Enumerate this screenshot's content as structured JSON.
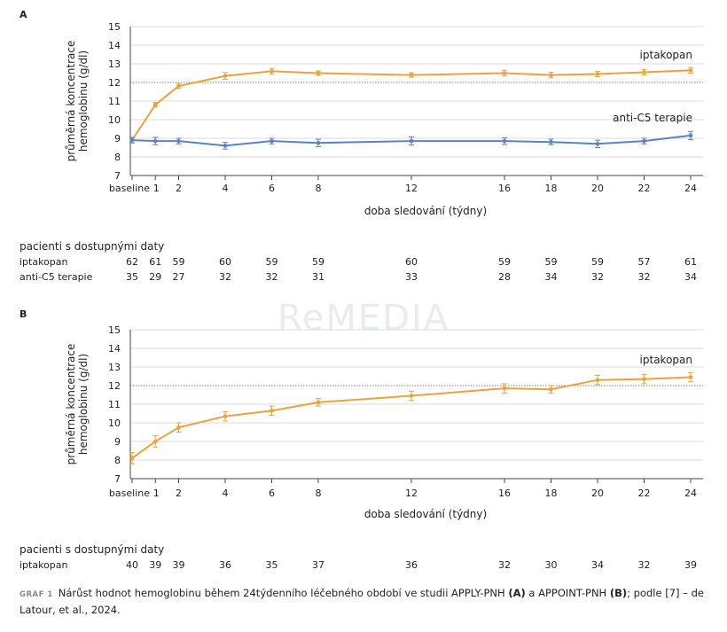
{
  "watermark": "ReMEDIA",
  "chart_data": [
    {
      "panel": "A",
      "type": "line",
      "ylabel_lines": [
        "průměrná koncentrace",
        "hemoglobinu (g/dl)"
      ],
      "xlabel": "doba sledování (týdny)",
      "x": [
        0,
        1,
        2,
        4,
        6,
        8,
        12,
        16,
        18,
        20,
        22,
        24
      ],
      "xtick_labels": [
        "baseline",
        "1",
        "2",
        "4",
        "6",
        "8",
        "12",
        "16",
        "18",
        "20",
        "22",
        "24"
      ],
      "ylim": [
        7,
        15
      ],
      "yticks": [
        7,
        8,
        9,
        10,
        11,
        12,
        13,
        14,
        15
      ],
      "reference_line": 12,
      "series": [
        {
          "name": "iptakopan",
          "color": "#e8a43c",
          "values": [
            8.9,
            10.8,
            11.8,
            12.35,
            12.6,
            12.5,
            12.4,
            12.5,
            12.4,
            12.45,
            12.55,
            12.65
          ],
          "err": [
            0.15,
            0.12,
            0.12,
            0.18,
            0.15,
            0.12,
            0.12,
            0.15,
            0.15,
            0.15,
            0.15,
            0.15
          ]
        },
        {
          "name": "anti-C5 terapie",
          "color": "#5b82c4",
          "values": [
            8.9,
            8.85,
            8.85,
            8.6,
            8.85,
            8.75,
            8.85,
            8.85,
            8.8,
            8.7,
            8.85,
            9.15
          ],
          "err": [
            0.15,
            0.2,
            0.15,
            0.18,
            0.15,
            0.2,
            0.22,
            0.18,
            0.15,
            0.2,
            0.15,
            0.22
          ]
        }
      ],
      "table": {
        "title": "pacienti s dostupnými daty",
        "rows": [
          {
            "label": "iptakopan",
            "values": [
              "62",
              "61",
              "59",
              "60",
              "59",
              "59",
              "60",
              "59",
              "59",
              "59",
              "57",
              "61"
            ]
          },
          {
            "label": "anti-C5 terapie",
            "values": [
              "35",
              "29",
              "27",
              "32",
              "32",
              "31",
              "33",
              "28",
              "34",
              "32",
              "32",
              "34"
            ]
          }
        ]
      }
    },
    {
      "panel": "B",
      "type": "line",
      "ylabel_lines": [
        "průměrná koncentrace",
        "hemoglobinu (g/dl)"
      ],
      "xlabel": "doba sledování (týdny)",
      "x": [
        0,
        1,
        2,
        4,
        6,
        8,
        12,
        16,
        18,
        20,
        22,
        24
      ],
      "xtick_labels": [
        "baseline",
        "1",
        "2",
        "4",
        "6",
        "8",
        "12",
        "16",
        "18",
        "20",
        "22",
        "24"
      ],
      "ylim": [
        7,
        15
      ],
      "yticks": [
        7,
        8,
        9,
        10,
        11,
        12,
        13,
        14,
        15
      ],
      "reference_line": 12,
      "series": [
        {
          "name": "iptakopan",
          "color": "#e8a43c",
          "values": [
            8.1,
            9.0,
            9.75,
            10.35,
            10.65,
            11.1,
            11.45,
            11.85,
            11.8,
            12.3,
            12.35,
            12.45
          ],
          "err": [
            0.3,
            0.3,
            0.25,
            0.25,
            0.25,
            0.2,
            0.25,
            0.25,
            0.2,
            0.25,
            0.25,
            0.25
          ]
        }
      ],
      "table": {
        "title": "pacienti s dostupnými daty",
        "rows": [
          {
            "label": "iptakopan",
            "values": [
              "40",
              "39",
              "39",
              "36",
              "35",
              "37",
              "36",
              "32",
              "30",
              "34",
              "32",
              "39"
            ]
          }
        ]
      }
    }
  ],
  "caption": {
    "label": "GRAF 1",
    "text_1": "Nárůst hodnot hemoglobinu během 24týdenního léčebného období ve studii APPLY-PNH ",
    "bold_1": "(A)",
    "text_2": " a APPOINT-PNH ",
    "bold_2": "(B)",
    "text_3": "; podle [7] – de Latour, et al., 2024."
  }
}
